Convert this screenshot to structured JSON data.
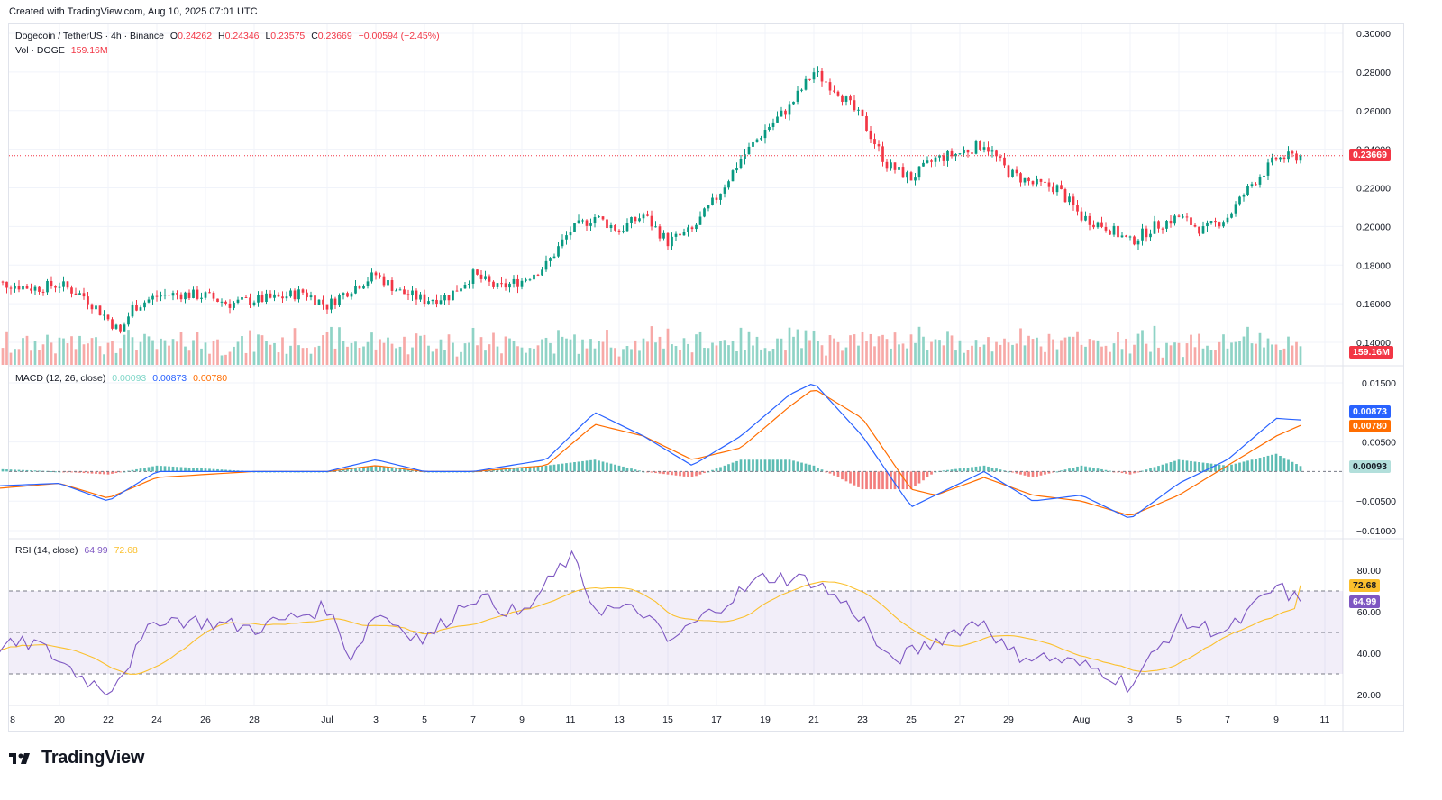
{
  "meta": {
    "created": "Created with TradingView.com, Aug 10, 2025 07:01 UTC"
  },
  "symbol": {
    "name": "Dogecoin / TetherUS · 4h · Binance",
    "o_label": "O",
    "o": "0.24262",
    "h_label": "H",
    "h": "0.24346",
    "l_label": "L",
    "l": "0.23575",
    "c_label": "C",
    "c": "0.23669",
    "change": "−0.00594 (−2.45%)"
  },
  "volume": {
    "label": "Vol · DOGE",
    "value": "159.16M"
  },
  "macd": {
    "label": "MACD (12, 26, close)",
    "hist": "0.00093",
    "macd": "0.00873",
    "signal": "0.00780"
  },
  "rsi": {
    "label": "RSI (14, close)",
    "rsi": "64.99",
    "ma": "72.68"
  },
  "price_tags": {
    "last": "0.23669",
    "volume": "159.16M",
    "macd": "0.00873",
    "signal": "0.00780",
    "hist": "0.00093",
    "rsi_ma": "72.68",
    "rsi": "64.99"
  },
  "colors": {
    "up": "#089981",
    "down": "#f23645",
    "macd": "#2962ff",
    "signal": "#ff6d00",
    "rsi": "#7e57c2",
    "rsi_ma": "#fbc02d"
  },
  "x_axis": {
    "ticks": [
      "8",
      "20",
      "22",
      "24",
      "26",
      "28",
      "Jul",
      "3",
      "5",
      "7",
      "9",
      "11",
      "13",
      "15",
      "17",
      "19",
      "21",
      "23",
      "25",
      "27",
      "29",
      "Aug",
      "3",
      "5",
      "7",
      "9",
      "11"
    ]
  },
  "price_axis": {
    "ticks": [
      "0.30000",
      "0.28000",
      "0.26000",
      "0.24000",
      "0.22000",
      "0.20000",
      "0.18000",
      "0.16000",
      "0.14000"
    ]
  },
  "macd_axis": {
    "ticks": [
      "0.01500",
      "0.00500",
      "−0.00500",
      "−0.01000"
    ]
  },
  "rsi_axis": {
    "ticks": [
      "80.00",
      "60.00",
      "40.00",
      "20.00"
    ]
  },
  "brand": {
    "name": "TradingView",
    "logo_text": "TV"
  },
  "chart_data": {
    "type": "candlestick",
    "title": "Dogecoin / TetherUS · 4h · Binance",
    "x_range": [
      "Jun 17 2025",
      "Aug 10 2025"
    ],
    "price_ylim": [
      0.13,
      0.3
    ],
    "price_path": [
      [
        "Jun 17",
        0.171
      ],
      [
        "Jun 18",
        0.17
      ],
      [
        "Jun 19",
        0.168
      ],
      [
        "Jun 20",
        0.17
      ],
      [
        "Jun 21",
        0.164
      ],
      [
        "Jun 22",
        0.152
      ],
      [
        "Jun 22.5",
        0.145
      ],
      [
        "Jun 23",
        0.158
      ],
      [
        "Jun 24",
        0.164
      ],
      [
        "Jun 25",
        0.165
      ],
      [
        "Jun 26",
        0.164
      ],
      [
        "Jun 27",
        0.16
      ],
      [
        "Jun 28",
        0.162
      ],
      [
        "Jun 29",
        0.163
      ],
      [
        "Jun 30",
        0.166
      ],
      [
        "Jul 1",
        0.159
      ],
      [
        "Jul 2",
        0.168
      ],
      [
        "Jul 3",
        0.175
      ],
      [
        "Jul 4",
        0.166
      ],
      [
        "Jul 5",
        0.162
      ],
      [
        "Jul 6",
        0.164
      ],
      [
        "Jul 7",
        0.175
      ],
      [
        "Jul 8",
        0.168
      ],
      [
        "Jul 9",
        0.172
      ],
      [
        "Jul 10",
        0.18
      ],
      [
        "Jul 11",
        0.198
      ],
      [
        "Jul 12",
        0.205
      ],
      [
        "Jul 13",
        0.198
      ],
      [
        "Jul 14",
        0.206
      ],
      [
        "Jul 15",
        0.192
      ],
      [
        "Jul 16",
        0.198
      ],
      [
        "Jul 17",
        0.215
      ],
      [
        "Jul 18",
        0.235
      ],
      [
        "Jul 19",
        0.25
      ],
      [
        "Jul 20",
        0.262
      ],
      [
        "Jul 21",
        0.28
      ],
      [
        "Jul 22",
        0.27
      ],
      [
        "Jul 23",
        0.255
      ],
      [
        "Jul 24",
        0.232
      ],
      [
        "Jul 25",
        0.225
      ],
      [
        "Jul 26",
        0.235
      ],
      [
        "Jul 27",
        0.238
      ],
      [
        "Jul 28",
        0.243
      ],
      [
        "Jul 29",
        0.228
      ],
      [
        "Jul 30",
        0.222
      ],
      [
        "Jul 31",
        0.22
      ],
      [
        "Aug 1",
        0.205
      ],
      [
        "Aug 2",
        0.2
      ],
      [
        "Aug 3",
        0.192
      ],
      [
        "Aug 4",
        0.2
      ],
      [
        "Aug 5",
        0.205
      ],
      [
        "Aug 6",
        0.198
      ],
      [
        "Aug 7",
        0.205
      ],
      [
        "Aug 8",
        0.222
      ],
      [
        "Aug 9",
        0.235
      ],
      [
        "Aug 10",
        0.2367
      ]
    ],
    "last_close": 0.23669,
    "volume_last": "159.16M",
    "macd_ylim": [
      -0.011,
      0.016
    ],
    "macd_path": [
      [
        "Jun 17",
        -0.0025
      ],
      [
        "Jun 20",
        -0.002
      ],
      [
        "Jun 22",
        -0.005
      ],
      [
        "Jun 24",
        0.0
      ],
      [
        "Jun 28",
        0.0
      ],
      [
        "Jul 1",
        0.0
      ],
      [
        "Jul 3",
        0.002
      ],
      [
        "Jul 5",
        0.0
      ],
      [
        "Jul 7",
        0.0
      ],
      [
        "Jul 10",
        0.002
      ],
      [
        "Jul 12",
        0.01
      ],
      [
        "Jul 14",
        0.006
      ],
      [
        "Jul 16",
        0.001
      ],
      [
        "Jul 18",
        0.006
      ],
      [
        "Jul 20",
        0.013
      ],
      [
        "Jul 21",
        0.015
      ],
      [
        "Jul 23",
        0.006
      ],
      [
        "Jul 25",
        -0.006
      ],
      [
        "Jul 26",
        -0.004
      ],
      [
        "Jul 28",
        0.0
      ],
      [
        "Jul 30",
        -0.005
      ],
      [
        "Aug 1",
        -0.004
      ],
      [
        "Aug 3",
        -0.008
      ],
      [
        "Aug 5",
        -0.002
      ],
      [
        "Aug 7",
        0.002
      ],
      [
        "Aug 9",
        0.009
      ],
      [
        "Aug 10",
        0.00873
      ]
    ],
    "signal_path": [
      [
        "Jun 17",
        -0.003
      ],
      [
        "Jun 20",
        -0.002
      ],
      [
        "Jun 22",
        -0.0045
      ],
      [
        "Jun 24",
        -0.001
      ],
      [
        "Jun 28",
        0.0
      ],
      [
        "Jul 1",
        0.0
      ],
      [
        "Jul 3",
        0.001
      ],
      [
        "Jul 5",
        0.0
      ],
      [
        "Jul 7",
        0.0
      ],
      [
        "Jul 10",
        0.001
      ],
      [
        "Jul 12",
        0.008
      ],
      [
        "Jul 14",
        0.006
      ],
      [
        "Jul 16",
        0.002
      ],
      [
        "Jul 18",
        0.004
      ],
      [
        "Jul 20",
        0.011
      ],
      [
        "Jul 21",
        0.014
      ],
      [
        "Jul 23",
        0.009
      ],
      [
        "Jul 25",
        -0.003
      ],
      [
        "Jul 26",
        -0.004
      ],
      [
        "Jul 28",
        -0.001
      ],
      [
        "Jul 30",
        -0.004
      ],
      [
        "Aug 1",
        -0.005
      ],
      [
        "Aug 3",
        -0.0075
      ],
      [
        "Aug 5",
        -0.004
      ],
      [
        "Aug 7",
        0.001
      ],
      [
        "Aug 9",
        0.006
      ],
      [
        "Aug 10",
        0.0078
      ]
    ],
    "rsi_ylim": [
      15,
      85
    ],
    "rsi_path": [
      [
        "Jun 17",
        42
      ],
      [
        "Jun 19",
        45
      ],
      [
        "Jun 21",
        28
      ],
      [
        "Jun 22",
        22
      ],
      [
        "Jun 23",
        38
      ],
      [
        "Jun 24",
        57
      ],
      [
        "Jun 26",
        55
      ],
      [
        "Jun 28",
        52
      ],
      [
        "Jul 1",
        62
      ],
      [
        "Jul 2",
        38
      ],
      [
        "Jul 3",
        60
      ],
      [
        "Jul 5",
        46
      ],
      [
        "Jul 7",
        68
      ],
      [
        "Jul 9",
        58
      ],
      [
        "Jul 11",
        87
      ],
      [
        "Jul 12",
        62
      ],
      [
        "Jul 14",
        60
      ],
      [
        "Jul 15",
        45
      ],
      [
        "Jul 17",
        62
      ],
      [
        "Jul 19",
        77
      ],
      [
        "Jul 21",
        75
      ],
      [
        "Jul 23",
        57
      ],
      [
        "Jul 24",
        36
      ],
      [
        "Jul 25",
        40
      ],
      [
        "Jul 27",
        52
      ],
      [
        "Jul 28",
        56
      ],
      [
        "Jul 29",
        40
      ],
      [
        "Jul 31",
        37
      ],
      [
        "Aug 2",
        31
      ],
      [
        "Aug 3",
        24
      ],
      [
        "Aug 5",
        55
      ],
      [
        "Aug 7",
        50
      ],
      [
        "Aug 9",
        72
      ],
      [
        "Aug 10",
        64.99
      ]
    ],
    "rsi_ma_last": 72.68,
    "rsi_band": [
      30,
      70
    ]
  }
}
